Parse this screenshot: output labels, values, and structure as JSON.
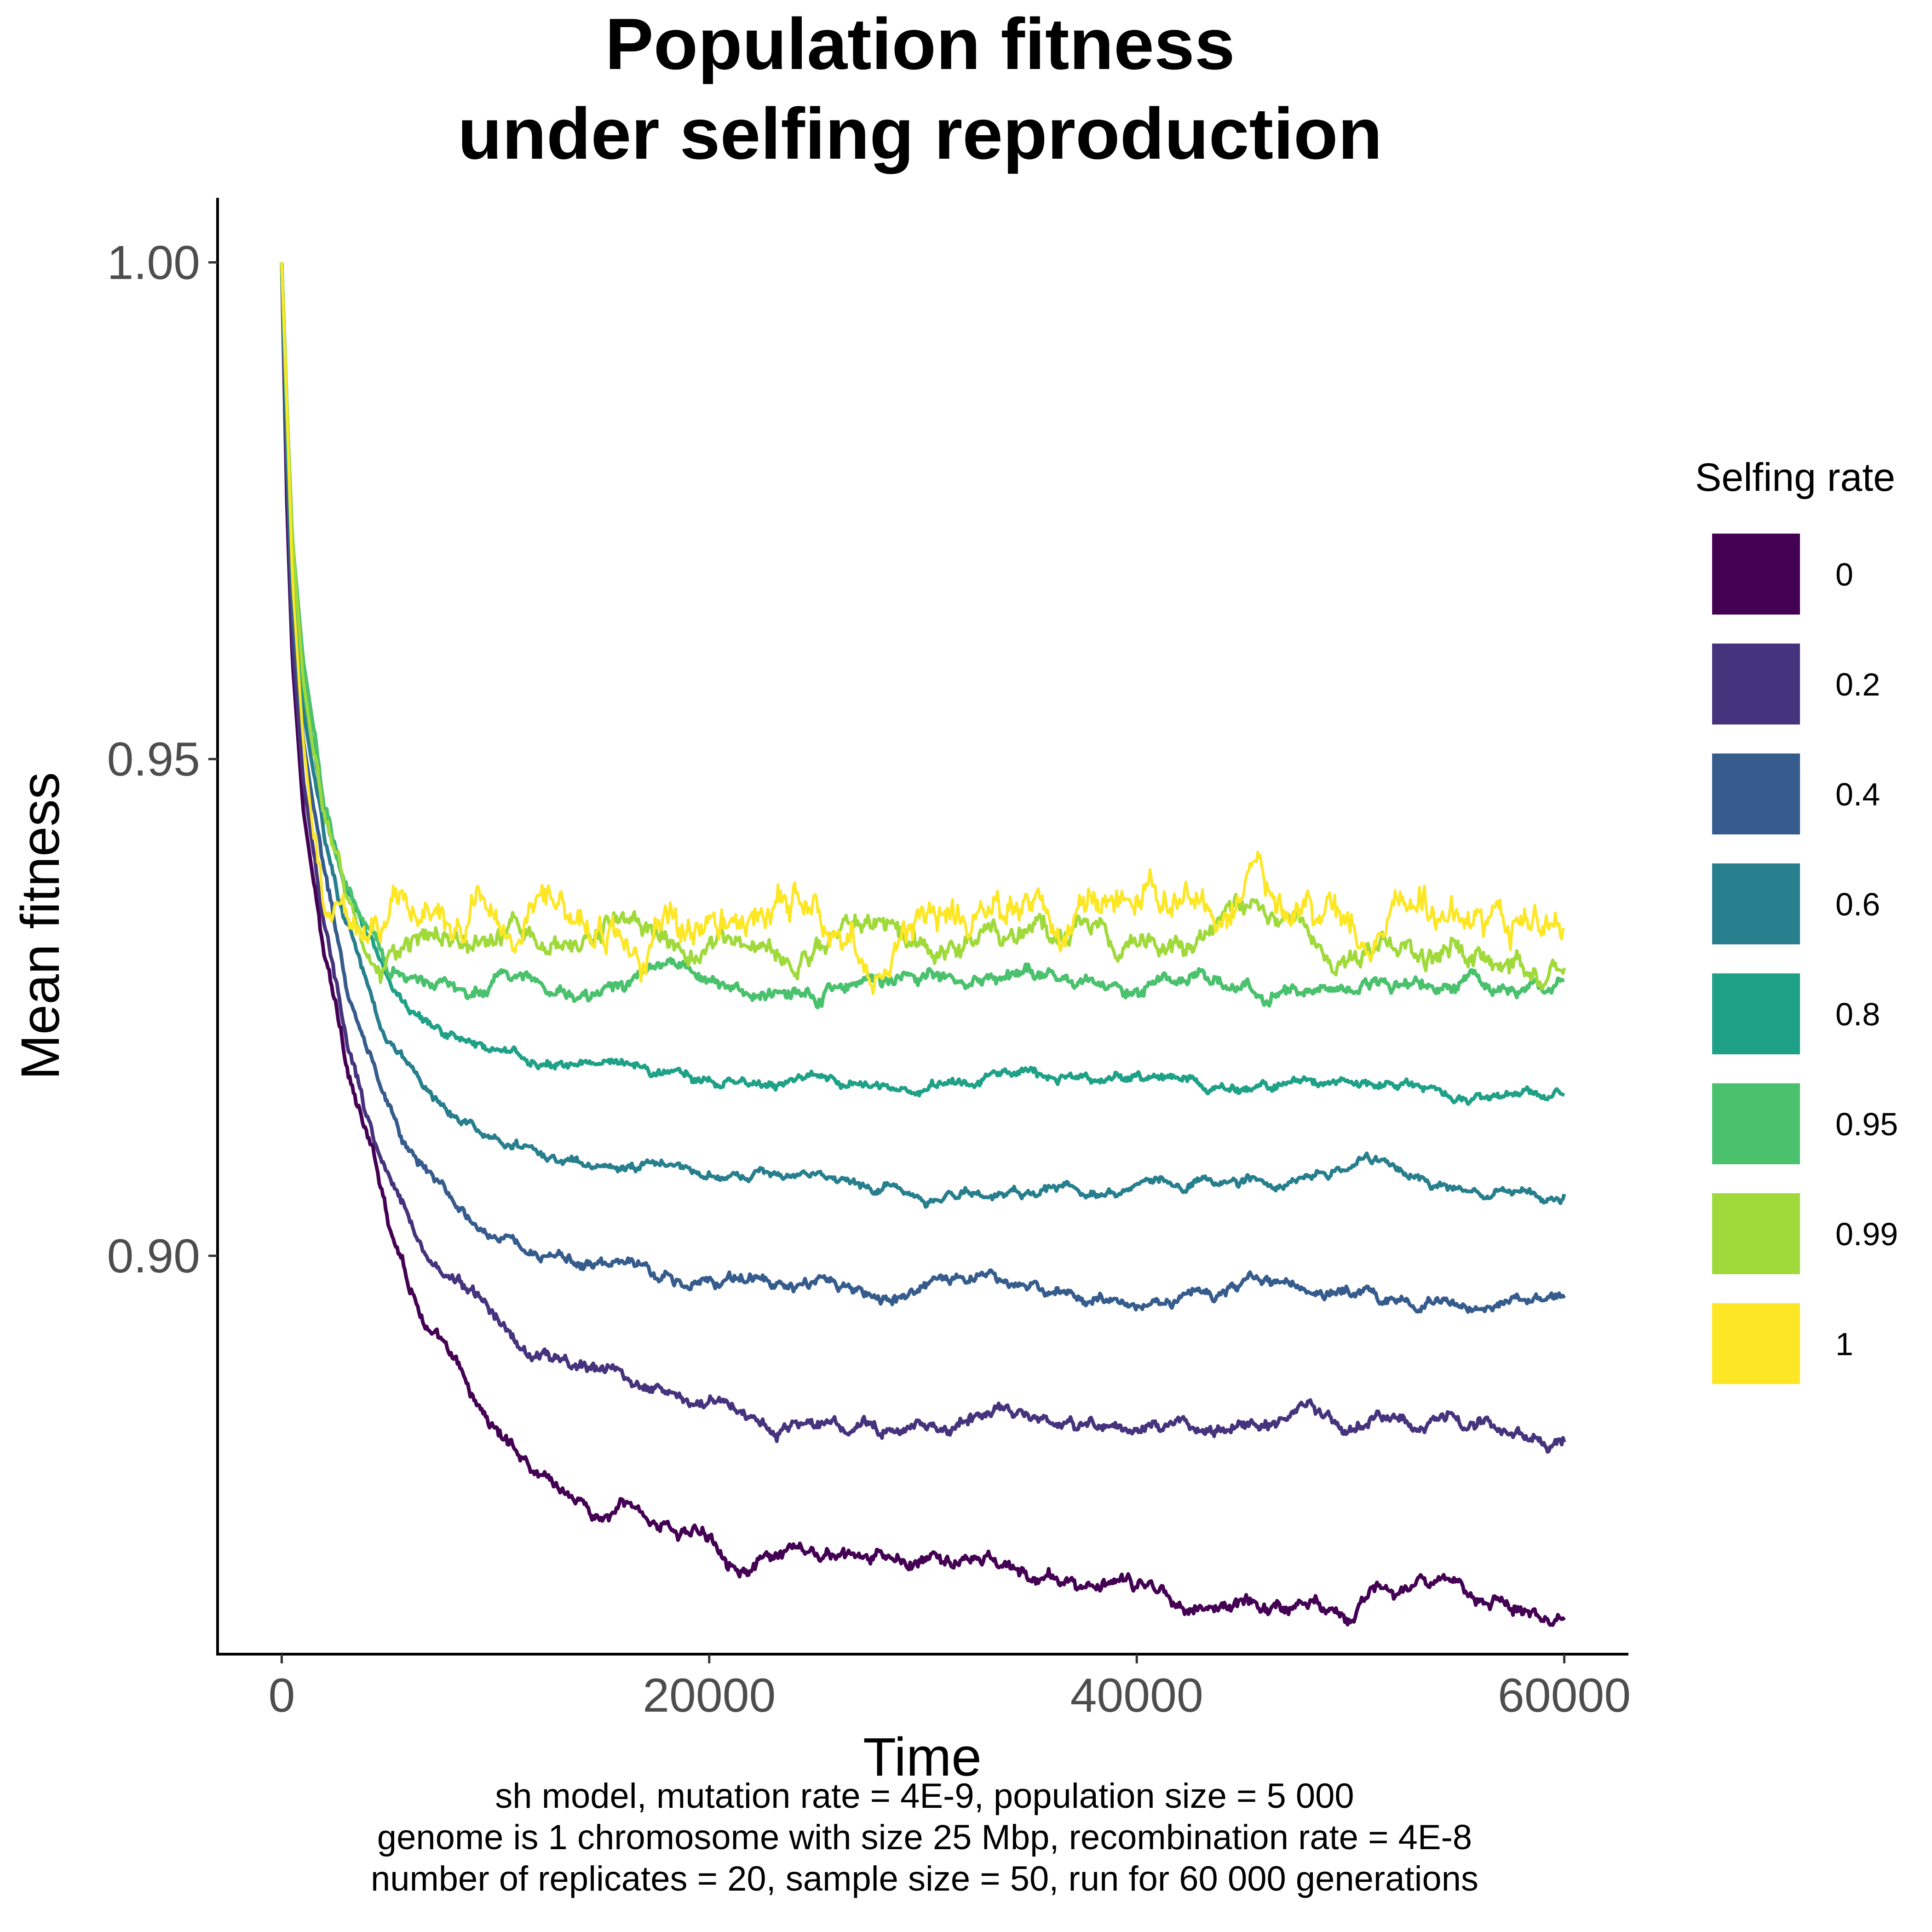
{
  "chart_data": {
    "type": "line",
    "title": [
      "Population fitness",
      "under selfing reproduction"
    ],
    "xlabel": "Time",
    "ylabel": "Mean fitness",
    "xlim": [
      -3000,
      63000
    ],
    "ylim": [
      0.8599,
      1.0065
    ],
    "xticks": [
      0,
      20000,
      40000,
      60000
    ],
    "xtick_labels": [
      "0",
      "20000",
      "40000",
      "60000"
    ],
    "yticks": [
      0.9,
      0.95,
      1.0
    ],
    "ytick_labels": [
      "0.90",
      "0.95",
      "1.00"
    ],
    "grid": false,
    "legend": {
      "title": "Selfing rate",
      "position": "right"
    },
    "caption": [
      "sh model, mutation rate = 4E-9, population size = 5 000",
      "genome is 1 chromosome with size 25 Mbp, recombination rate = 4E-8",
      "number of replicates = 20, sample size = 50, run for 60 000 generations"
    ],
    "series": [
      {
        "name": "0",
        "color": "#440154",
        "x": [
          0,
          250,
          500,
          1000,
          2000,
          3000,
          4000,
          5000,
          6000,
          7000,
          8000,
          9000,
          10000,
          12000,
          14000,
          15000,
          16000,
          18000,
          20000,
          22000,
          25000,
          28000,
          30000,
          33000,
          35000,
          40000,
          45000,
          50000,
          53000,
          55000,
          57000,
          60000
        ],
        "y": [
          1.0,
          0.975,
          0.96,
          0.945,
          0.93,
          0.92,
          0.912,
          0.904,
          0.898,
          0.893,
          0.889,
          0.885,
          0.882,
          0.879,
          0.876,
          0.874,
          0.875,
          0.873,
          0.872,
          0.87,
          0.869,
          0.868,
          0.868,
          0.869,
          0.867,
          0.866,
          0.865,
          0.866,
          0.867,
          0.865,
          0.866,
          0.865
        ]
      },
      {
        "name": "0.2",
        "color": "#46337e",
        "x": [
          0,
          250,
          500,
          1000,
          2000,
          3000,
          4000,
          5000,
          6000,
          7000,
          8000,
          9000,
          10000,
          12000,
          14000,
          16000,
          18000,
          20000,
          22000,
          25000,
          28000,
          30000,
          35000,
          40000,
          45000,
          50000,
          55000,
          60000
        ],
        "y": [
          1.0,
          0.978,
          0.962,
          0.948,
          0.933,
          0.922,
          0.914,
          0.908,
          0.904,
          0.9,
          0.898,
          0.896,
          0.894,
          0.891,
          0.889,
          0.888,
          0.886,
          0.885,
          0.885,
          0.884,
          0.883,
          0.883,
          0.883,
          0.882,
          0.883,
          0.883,
          0.883,
          0.883
        ]
      },
      {
        "name": "0.4",
        "color": "#365c8d",
        "x": [
          0,
          250,
          500,
          1000,
          2000,
          3000,
          4000,
          5000,
          6000,
          7000,
          8000,
          10000,
          12000,
          14000,
          16000,
          18000,
          20000,
          22000,
          25000,
          28000,
          30000,
          35000,
          40000,
          45000,
          50000,
          55000,
          60000
        ],
        "y": [
          1.0,
          0.98,
          0.965,
          0.952,
          0.938,
          0.928,
          0.921,
          0.916,
          0.912,
          0.909,
          0.907,
          0.903,
          0.901,
          0.899,
          0.899,
          0.898,
          0.897,
          0.897,
          0.896,
          0.896,
          0.896,
          0.896,
          0.896,
          0.896,
          0.896,
          0.895,
          0.896
        ]
      },
      {
        "name": "0.6",
        "color": "#277f8e",
        "x": [
          0,
          250,
          500,
          1000,
          2000,
          3000,
          4000,
          5000,
          6000,
          7000,
          8000,
          10000,
          12000,
          14000,
          16000,
          18000,
          20000,
          25000,
          30000,
          35000,
          40000,
          45000,
          50000,
          55000,
          60000
        ],
        "y": [
          1.0,
          0.982,
          0.968,
          0.955,
          0.942,
          0.933,
          0.927,
          0.922,
          0.919,
          0.916,
          0.914,
          0.912,
          0.91,
          0.909,
          0.909,
          0.909,
          0.908,
          0.908,
          0.907,
          0.907,
          0.907,
          0.907,
          0.908,
          0.907,
          0.907
        ]
      },
      {
        "name": "0.8",
        "color": "#1fa187",
        "x": [
          0,
          250,
          500,
          1000,
          2000,
          3000,
          4000,
          5000,
          6000,
          7000,
          8000,
          10000,
          12000,
          14000,
          16000,
          20000,
          25000,
          30000,
          35000,
          40000,
          45000,
          50000,
          55000,
          60000
        ],
        "y": [
          1.0,
          0.984,
          0.97,
          0.957,
          0.945,
          0.937,
          0.932,
          0.928,
          0.925,
          0.923,
          0.922,
          0.92,
          0.919,
          0.919,
          0.919,
          0.918,
          0.918,
          0.917,
          0.918,
          0.918,
          0.917,
          0.918,
          0.917,
          0.917
        ]
      },
      {
        "name": "0.95",
        "color": "#4ac16d",
        "x": [
          0,
          250,
          500,
          1000,
          2000,
          3000,
          4000,
          5000,
          7000,
          10000,
          15000,
          20000,
          25000,
          30000,
          35000,
          40000,
          45000,
          50000,
          55000,
          60000
        ],
        "y": [
          1.0,
          0.985,
          0.972,
          0.96,
          0.946,
          0.937,
          0.933,
          0.93,
          0.928,
          0.928,
          0.927,
          0.927,
          0.927,
          0.928,
          0.928,
          0.927,
          0.927,
          0.928,
          0.927,
          0.927
        ]
      },
      {
        "name": "0.99",
        "color": "#9fda3a",
        "x": [
          0,
          250,
          500,
          1000,
          2000,
          3000,
          4000,
          5000,
          7000,
          10000,
          15000,
          20000,
          25000,
          30000,
          35000,
          40000,
          45000,
          50000,
          55000,
          60000
        ],
        "y": [
          1.0,
          0.985,
          0.972,
          0.958,
          0.943,
          0.935,
          0.932,
          0.931,
          0.931,
          0.932,
          0.931,
          0.932,
          0.932,
          0.931,
          0.932,
          0.931,
          0.932,
          0.931,
          0.931,
          0.932
        ]
      },
      {
        "name": "1",
        "color": "#fde725",
        "x": [
          0,
          250,
          500,
          1000,
          1500,
          2000,
          3000,
          4000,
          5000,
          7000,
          10000,
          13000,
          15000,
          18000,
          20000,
          25000,
          30000,
          32000,
          35000,
          40000,
          45000,
          50000,
          55000,
          58000,
          60000
        ],
        "y": [
          1.0,
          0.985,
          0.968,
          0.952,
          0.942,
          0.936,
          0.933,
          0.932,
          0.933,
          0.934,
          0.934,
          0.936,
          0.933,
          0.934,
          0.935,
          0.934,
          0.933,
          0.937,
          0.935,
          0.935,
          0.934,
          0.934,
          0.933,
          0.935,
          0.934
        ]
      }
    ]
  }
}
